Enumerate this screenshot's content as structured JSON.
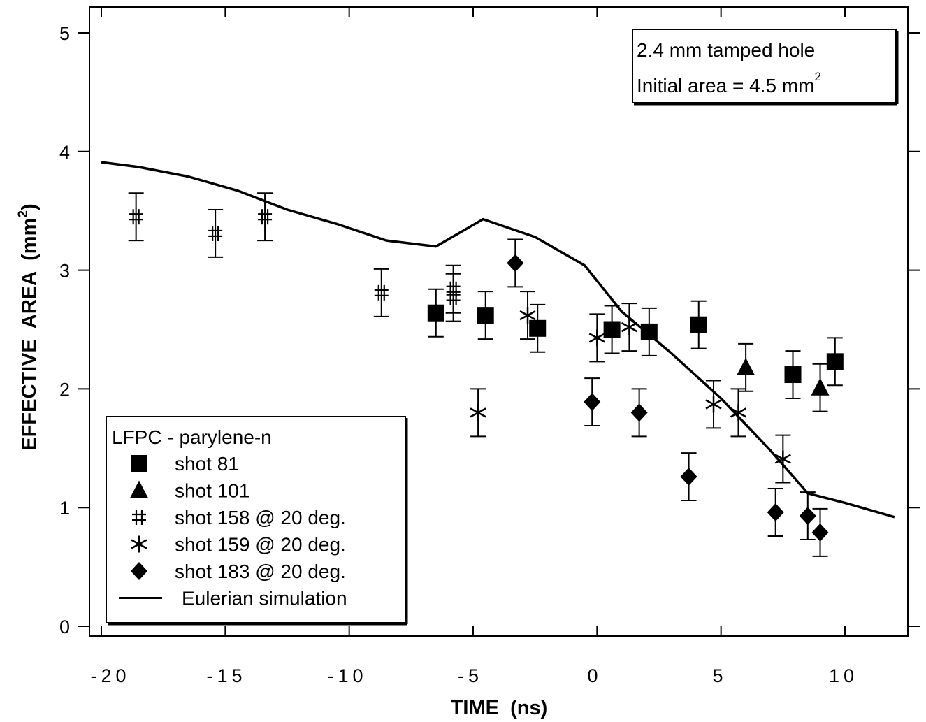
{
  "chart_data": {
    "type": "scatter",
    "title": "",
    "xlabel": "TIME  (ns)",
    "ylabel": "EFFECTIVE  AREA  (mm",
    "ylabel_superscript": "2",
    "ylabel_close": ")",
    "xlim": [
      -20,
      12
    ],
    "ylim": [
      0,
      5
    ],
    "xticks": [
      -20,
      -15,
      -10,
      -5,
      0,
      5,
      10
    ],
    "xtick_labels": [
      "-20",
      "-15",
      "-10",
      "-5",
      "0",
      "5",
      "10"
    ],
    "yticks": [
      0,
      1,
      2,
      3,
      4,
      5
    ],
    "ytick_labels": [
      "0",
      "1",
      "2",
      "3",
      "4",
      "5"
    ],
    "grid": false,
    "annotation": {
      "line1": "2.4 mm tamped hole",
      "line2": "Initial area = 4.5 mm",
      "line2_superscript": "2"
    },
    "legend": {
      "placement": "bottom-left",
      "title": "LFPC - parylene-n",
      "entries": [
        {
          "label": "shot 81",
          "marker": "square"
        },
        {
          "label": "shot 101",
          "marker": "triangle"
        },
        {
          "label": "shot 158 @ 20 deg.",
          "marker": "hash"
        },
        {
          "label": "shot 159 @ 20 deg.",
          "marker": "asterisk"
        },
        {
          "label": "shot 183 @ 20 deg.",
          "marker": "diamond"
        },
        {
          "label": "Eulerian simulation",
          "marker": "line"
        }
      ]
    },
    "error_bar": 0.2,
    "series": [
      {
        "name": "shot 81",
        "marker": "square",
        "points": [
          [
            -6.5,
            2.64
          ],
          [
            -4.5,
            2.62
          ],
          [
            -2.4,
            2.51
          ],
          [
            0.6,
            2.5
          ],
          [
            2.1,
            2.48
          ],
          [
            4.1,
            2.54
          ],
          [
            7.9,
            2.12
          ],
          [
            9.6,
            2.23
          ]
        ]
      },
      {
        "name": "shot 101",
        "marker": "triangle",
        "points": [
          [
            6.0,
            2.18
          ],
          [
            9.0,
            2.01
          ]
        ]
      },
      {
        "name": "shot 158 @ 20 deg.",
        "marker": "hash",
        "points": [
          [
            -18.6,
            3.45
          ],
          [
            -15.4,
            3.31
          ],
          [
            -13.4,
            3.45
          ],
          [
            -8.7,
            2.81
          ],
          [
            -5.8,
            2.84
          ],
          [
            -5.8,
            2.77
          ]
        ]
      },
      {
        "name": "shot 159 @ 20 deg.",
        "marker": "asterisk",
        "points": [
          [
            -4.8,
            1.8
          ],
          [
            -2.8,
            2.62
          ],
          [
            0.0,
            2.43
          ],
          [
            1.3,
            2.52
          ],
          [
            4.7,
            1.87
          ],
          [
            5.7,
            1.8
          ],
          [
            7.5,
            1.41
          ]
        ]
      },
      {
        "name": "shot 183 @ 20 deg.",
        "marker": "diamond",
        "points": [
          [
            -3.3,
            3.06
          ],
          [
            -0.2,
            1.89
          ],
          [
            1.7,
            1.8
          ],
          [
            3.7,
            1.26
          ],
          [
            7.2,
            0.96
          ],
          [
            8.5,
            0.93
          ],
          [
            9.0,
            0.79
          ]
        ]
      },
      {
        "name": "Eulerian simulation",
        "marker": "line",
        "points": [
          [
            -20,
            3.91
          ],
          [
            -18.5,
            3.87
          ],
          [
            -16.5,
            3.79
          ],
          [
            -14.5,
            3.67
          ],
          [
            -12.5,
            3.51
          ],
          [
            -10.5,
            3.39
          ],
          [
            -8.5,
            3.25
          ],
          [
            -6.5,
            3.2
          ],
          [
            -4.6,
            3.43
          ],
          [
            -2.5,
            3.28
          ],
          [
            -0.5,
            3.04
          ],
          [
            1.0,
            2.65
          ],
          [
            3.0,
            2.3
          ],
          [
            5.0,
            1.92
          ],
          [
            7.0,
            1.48
          ],
          [
            8.5,
            1.12
          ],
          [
            10.0,
            1.04
          ],
          [
            12.0,
            0.92
          ]
        ]
      }
    ]
  }
}
